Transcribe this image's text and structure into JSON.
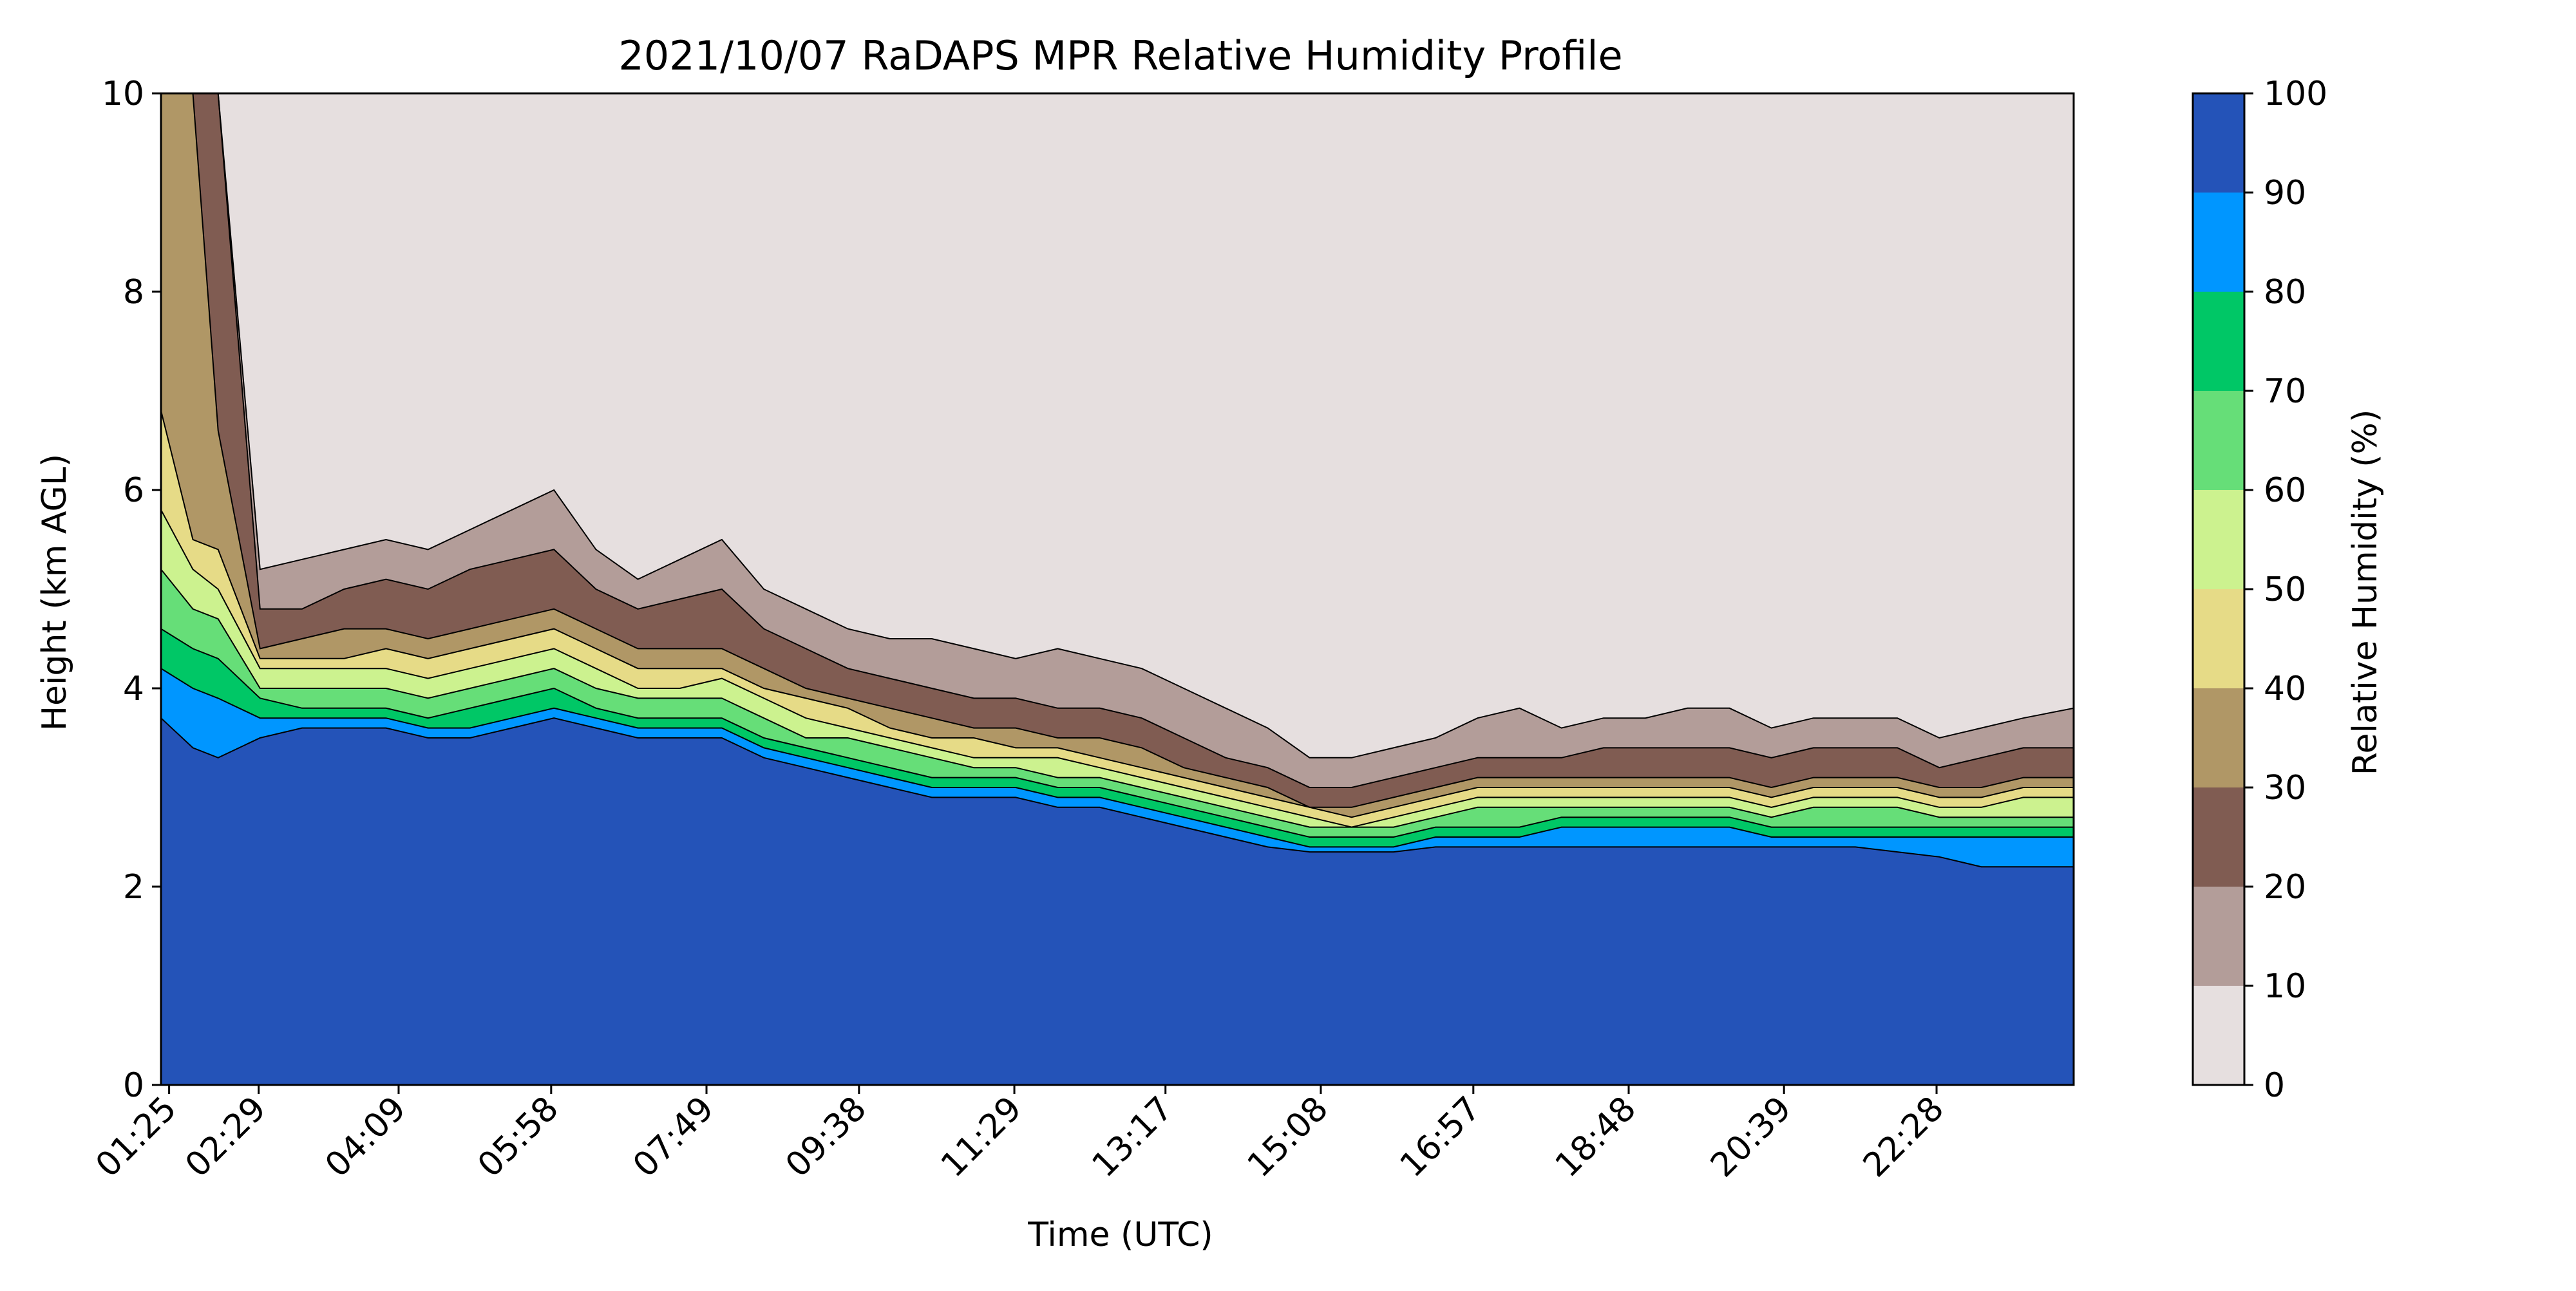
{
  "chart_data": {
    "type": "heatmap",
    "title": "2021/10/07 RaDAPS MPR Relative Humidity Profile",
    "xlabel": "Time (UTC)",
    "ylabel": "Height (km AGL)",
    "colorbar_label": "Relative Humidity (%)",
    "x_tick_labels": [
      "01:25",
      "02:29",
      "04:09",
      "05:58",
      "07:49",
      "09:38",
      "11:29",
      "13:17",
      "15:08",
      "16:57",
      "18:48",
      "20:39",
      "22:28"
    ],
    "x_tick_hours": [
      1.4167,
      2.4833,
      4.15,
      5.9667,
      7.8167,
      9.6333,
      11.4833,
      13.2833,
      15.1333,
      16.95,
      18.8,
      20.65,
      22.4667
    ],
    "xlim_hours": [
      1.32,
      24.1
    ],
    "ylim": [
      0,
      10
    ],
    "y_ticks": [
      0,
      2,
      4,
      6,
      8,
      10
    ],
    "colorbar_ticks": [
      0,
      10,
      20,
      30,
      40,
      50,
      60,
      70,
      80,
      90,
      100
    ],
    "levels": [
      {
        "range": [
          0,
          10
        ],
        "color": "#e6dfdf"
      },
      {
        "range": [
          10,
          20
        ],
        "color": "#b39d99"
      },
      {
        "range": [
          20,
          30
        ],
        "color": "#805c52"
      },
      {
        "range": [
          30,
          40
        ],
        "color": "#b09766"
      },
      {
        "range": [
          40,
          50
        ],
        "color": "#e6db87"
      },
      {
        "range": [
          50,
          60
        ],
        "color": "#ccf28f"
      },
      {
        "range": [
          60,
          70
        ],
        "color": "#66de78"
      },
      {
        "range": [
          70,
          80
        ],
        "color": "#00c766"
      },
      {
        "range": [
          80,
          90
        ],
        "color": "#0096ff"
      },
      {
        "range": [
          90,
          100
        ],
        "color": "#2453b8"
      }
    ],
    "contour_boundaries_km": {
      "hours": [
        1.32,
        1.7,
        2.0,
        2.5,
        3.0,
        3.5,
        4.0,
        4.5,
        5.0,
        5.5,
        6.0,
        6.5,
        7.0,
        7.5,
        8.0,
        8.5,
        9.0,
        9.5,
        10.0,
        10.5,
        11.0,
        11.5,
        12.0,
        12.5,
        13.0,
        13.5,
        14.0,
        14.5,
        15.0,
        15.5,
        16.0,
        16.5,
        17.0,
        17.5,
        18.0,
        18.5,
        19.0,
        19.5,
        20.0,
        20.5,
        21.0,
        21.5,
        22.0,
        22.5,
        23.0,
        23.5,
        24.1
      ],
      "rh10": [
        10,
        10,
        10,
        5.2,
        5.3,
        5.4,
        5.5,
        5.4,
        5.6,
        5.8,
        6.0,
        5.4,
        5.1,
        5.3,
        5.5,
        5.0,
        4.8,
        4.6,
        4.5,
        4.5,
        4.4,
        4.3,
        4.4,
        4.3,
        4.2,
        4.0,
        3.8,
        3.6,
        3.3,
        3.3,
        3.4,
        3.5,
        3.7,
        3.8,
        3.6,
        3.7,
        3.7,
        3.8,
        3.8,
        3.6,
        3.7,
        3.7,
        3.7,
        3.5,
        3.6,
        3.7,
        3.8
      ],
      "rh20": [
        10,
        10,
        10,
        4.8,
        4.8,
        5.0,
        5.1,
        5.0,
        5.2,
        5.3,
        5.4,
        5.0,
        4.8,
        4.9,
        5.0,
        4.6,
        4.4,
        4.2,
        4.1,
        4.0,
        3.9,
        3.9,
        3.8,
        3.8,
        3.7,
        3.5,
        3.3,
        3.2,
        3.0,
        3.0,
        3.1,
        3.2,
        3.3,
        3.3,
        3.3,
        3.4,
        3.4,
        3.4,
        3.4,
        3.3,
        3.4,
        3.4,
        3.4,
        3.2,
        3.3,
        3.4,
        3.4
      ],
      "rh30": [
        10,
        10,
        6.6,
        4.4,
        4.5,
        4.6,
        4.6,
        4.5,
        4.6,
        4.7,
        4.8,
        4.6,
        4.4,
        4.4,
        4.4,
        4.2,
        4.0,
        3.9,
        3.8,
        3.7,
        3.6,
        3.6,
        3.5,
        3.5,
        3.4,
        3.2,
        3.1,
        3.0,
        2.8,
        2.8,
        2.9,
        3.0,
        3.1,
        3.1,
        3.1,
        3.1,
        3.1,
        3.1,
        3.1,
        3.0,
        3.1,
        3.1,
        3.1,
        3.0,
        3.0,
        3.1,
        3.1
      ],
      "rh40": [
        6.8,
        5.5,
        5.4,
        4.3,
        4.3,
        4.3,
        4.4,
        4.3,
        4.4,
        4.5,
        4.6,
        4.4,
        4.2,
        4.2,
        4.2,
        4.0,
        3.9,
        3.8,
        3.6,
        3.5,
        3.5,
        3.4,
        3.4,
        3.3,
        3.2,
        3.1,
        3.0,
        2.9,
        2.8,
        2.7,
        2.8,
        2.9,
        3.0,
        3.0,
        3.0,
        3.0,
        3.0,
        3.0,
        3.0,
        2.9,
        3.0,
        3.0,
        3.0,
        2.9,
        2.9,
        3.0,
        3.0
      ],
      "rh50": [
        5.8,
        5.2,
        5.0,
        4.2,
        4.2,
        4.2,
        4.2,
        4.1,
        4.2,
        4.3,
        4.4,
        4.2,
        4.0,
        4.0,
        4.1,
        3.9,
        3.7,
        3.6,
        3.5,
        3.4,
        3.3,
        3.3,
        3.3,
        3.2,
        3.1,
        3.0,
        2.9,
        2.8,
        2.7,
        2.6,
        2.7,
        2.8,
        2.9,
        2.9,
        2.9,
        2.9,
        2.9,
        2.9,
        2.9,
        2.8,
        2.9,
        2.9,
        2.9,
        2.8,
        2.8,
        2.9,
        2.9
      ],
      "rh60": [
        5.2,
        4.8,
        4.7,
        4.0,
        4.0,
        4.0,
        4.0,
        3.9,
        4.0,
        4.1,
        4.2,
        4.0,
        3.9,
        3.9,
        3.9,
        3.7,
        3.5,
        3.5,
        3.4,
        3.3,
        3.2,
        3.2,
        3.1,
        3.1,
        3.0,
        2.9,
        2.8,
        2.7,
        2.6,
        2.6,
        2.6,
        2.7,
        2.8,
        2.8,
        2.8,
        2.8,
        2.8,
        2.8,
        2.8,
        2.7,
        2.8,
        2.8,
        2.8,
        2.7,
        2.7,
        2.7,
        2.7
      ],
      "rh70": [
        4.6,
        4.4,
        4.3,
        3.9,
        3.8,
        3.8,
        3.8,
        3.7,
        3.8,
        3.9,
        4.0,
        3.8,
        3.7,
        3.7,
        3.7,
        3.5,
        3.4,
        3.3,
        3.2,
        3.1,
        3.1,
        3.1,
        3.0,
        3.0,
        2.9,
        2.8,
        2.7,
        2.6,
        2.5,
        2.5,
        2.5,
        2.6,
        2.6,
        2.6,
        2.7,
        2.7,
        2.7,
        2.7,
        2.7,
        2.6,
        2.6,
        2.6,
        2.6,
        2.6,
        2.6,
        2.6,
        2.6
      ],
      "rh80": [
        4.2,
        4.0,
        3.9,
        3.7,
        3.7,
        3.7,
        3.7,
        3.6,
        3.6,
        3.7,
        3.8,
        3.7,
        3.6,
        3.6,
        3.6,
        3.4,
        3.3,
        3.2,
        3.1,
        3.0,
        3.0,
        3.0,
        2.9,
        2.9,
        2.8,
        2.7,
        2.6,
        2.5,
        2.4,
        2.4,
        2.4,
        2.5,
        2.5,
        2.5,
        2.6,
        2.6,
        2.6,
        2.6,
        2.6,
        2.5,
        2.5,
        2.5,
        2.5,
        2.5,
        2.5,
        2.5,
        2.5
      ],
      "rh90": [
        3.7,
        3.4,
        3.3,
        3.5,
        3.6,
        3.6,
        3.6,
        3.5,
        3.5,
        3.6,
        3.7,
        3.6,
        3.5,
        3.5,
        3.5,
        3.3,
        3.2,
        3.1,
        3.0,
        2.9,
        2.9,
        2.9,
        2.8,
        2.8,
        2.7,
        2.6,
        2.5,
        2.4,
        2.35,
        2.35,
        2.35,
        2.4,
        2.4,
        2.4,
        2.4,
        2.4,
        2.4,
        2.4,
        2.4,
        2.4,
        2.4,
        2.4,
        2.35,
        2.3,
        2.2,
        2.2,
        2.2
      ]
    }
  }
}
